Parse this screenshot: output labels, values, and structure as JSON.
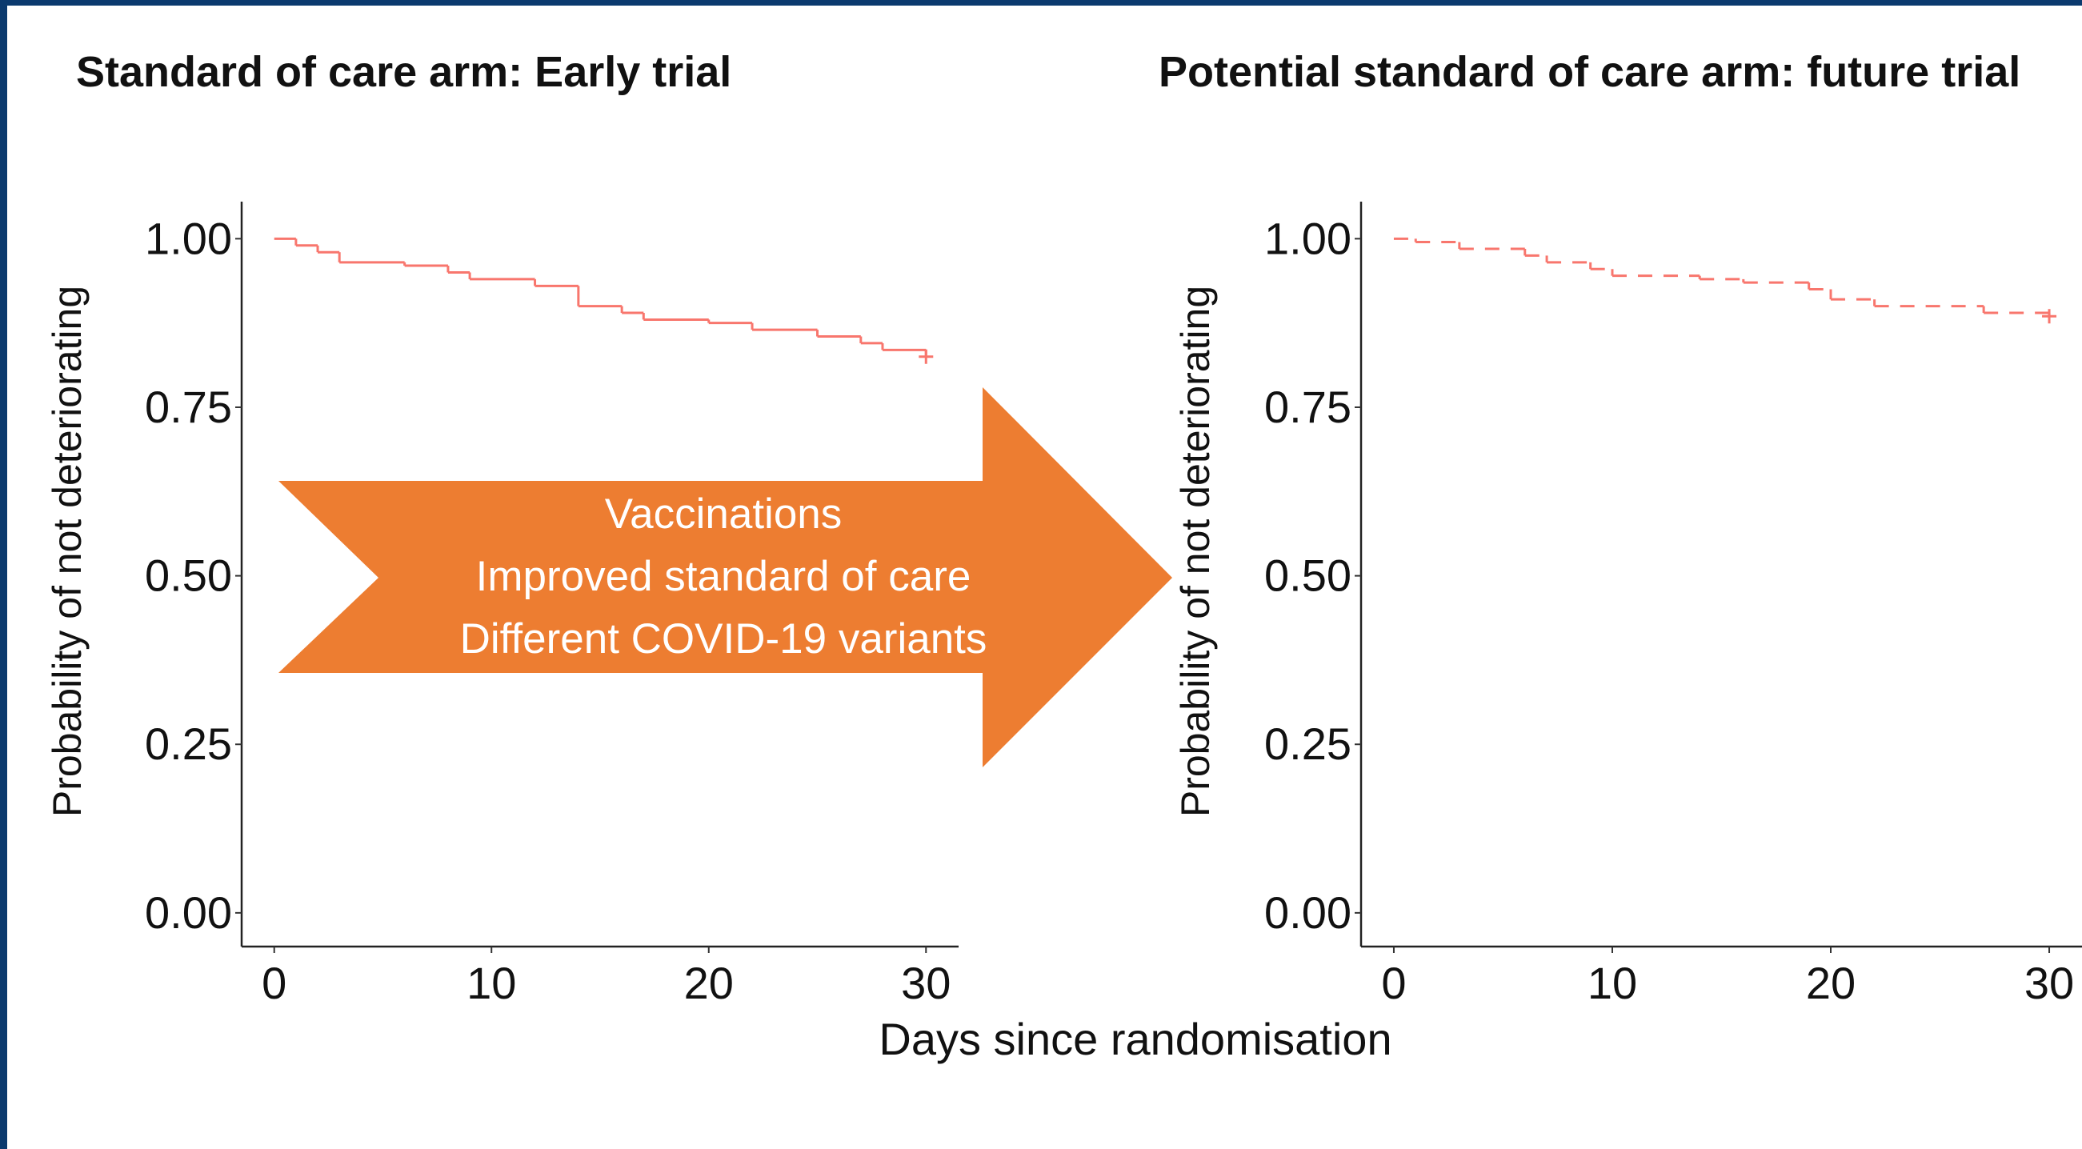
{
  "shared_x_label": "Days since randomisation",
  "annotation": {
    "lines": [
      "Vaccinations",
      "Improved standard of care",
      "Different COVID-19 variants"
    ],
    "color": "#ed7d31"
  },
  "chart_data": [
    {
      "type": "step",
      "title": "Standard of care arm: Early trial",
      "y_label": "Probability of not deteriorating",
      "series": [
        {
          "color": "#f8766d",
          "linestyle": "solid",
          "x": [
            0,
            1,
            2,
            3,
            6,
            8,
            9,
            12,
            14,
            16,
            17,
            20,
            22,
            25,
            27,
            28,
            30
          ],
          "values": [
            1.0,
            0.99,
            0.98,
            0.965,
            0.96,
            0.95,
            0.94,
            0.93,
            0.9,
            0.89,
            0.88,
            0.875,
            0.865,
            0.855,
            0.845,
            0.835,
            0.825
          ]
        }
      ],
      "xlim": [
        -1.5,
        31.5
      ],
      "xticks": [
        0,
        10,
        20,
        30
      ],
      "ylim": [
        -0.05,
        1.055
      ],
      "yticks": [
        {
          "value": 0,
          "label": "0.00"
        },
        {
          "value": 0.25,
          "label": "0.25"
        },
        {
          "value": 0.5,
          "label": "0.50"
        },
        {
          "value": 0.75,
          "label": "0.75"
        },
        {
          "value": 1,
          "label": "1.00"
        }
      ]
    },
    {
      "type": "step",
      "title": "Potential standard of care arm: future trial",
      "y_label": "Probability of not deteriorating",
      "series": [
        {
          "color": "#f8766d",
          "linestyle": "dashed",
          "x": [
            0,
            1,
            3,
            6,
            7,
            9,
            10,
            14,
            16,
            19,
            20,
            22,
            27,
            30
          ],
          "values": [
            1.0,
            0.995,
            0.985,
            0.975,
            0.965,
            0.955,
            0.945,
            0.94,
            0.935,
            0.925,
            0.91,
            0.9,
            0.89,
            0.885
          ]
        }
      ],
      "xlim": [
        -1.5,
        31.5
      ],
      "xticks": [
        0,
        10,
        20,
        30
      ],
      "ylim": [
        -0.05,
        1.055
      ],
      "yticks": [
        {
          "value": 0,
          "label": "0.00"
        },
        {
          "value": 0.25,
          "label": "0.25"
        },
        {
          "value": 0.5,
          "label": "0.50"
        },
        {
          "value": 0.75,
          "label": "0.75"
        },
        {
          "value": 1,
          "label": "1.00"
        }
      ]
    }
  ]
}
